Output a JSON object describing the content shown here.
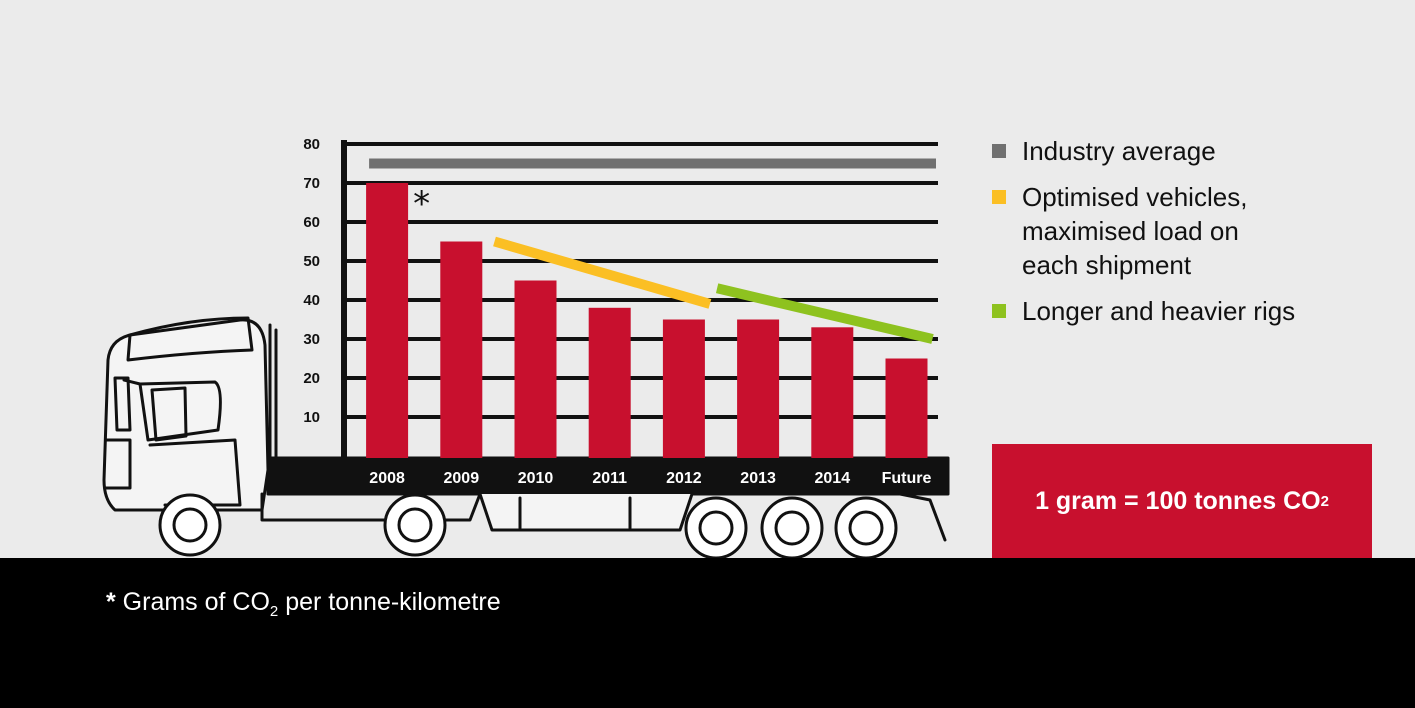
{
  "chart_data": {
    "type": "bar",
    "categories": [
      "2008",
      "2009",
      "2010",
      "2011",
      "2012",
      "2013",
      "2014",
      "Future"
    ],
    "values": [
      70,
      55,
      45,
      38,
      35,
      35,
      33,
      25
    ],
    "yticks": [
      10,
      20,
      30,
      40,
      50,
      60,
      70,
      80
    ],
    "ylim": [
      0,
      80
    ],
    "bar_color": "#c8102e",
    "annotation": "*",
    "reference_lines": [
      {
        "name": "Industry average",
        "color": "#707070",
        "from_category": "2008",
        "to_category": "Future",
        "from_value": 75,
        "to_value": 75
      },
      {
        "name": "Optimised vehicles, maximised load on each shipment",
        "color": "#fbbf24",
        "from_category": "2010",
        "to_category": "2012",
        "from_value": 55,
        "to_value": 39
      },
      {
        "name": "Longer and heavier rigs",
        "color": "#8ec21f",
        "from_category": "2013",
        "to_category": "Future",
        "from_value": 43,
        "to_value": 30
      }
    ]
  },
  "legend": [
    {
      "label": "Industry average",
      "color": "#707070"
    },
    {
      "label": "Optimised vehicles,\nmaximised load on\neach shipment",
      "color": "#fbbf24"
    },
    {
      "label": "Longer and heavier rigs",
      "color": "#8ec21f"
    }
  ],
  "callout": {
    "text": "1 gram = 100 tonnes CO",
    "subscript": "2"
  },
  "footnote": {
    "star": "*",
    "text": " Grams of CO",
    "subscript": "2",
    "suffix": " per tonne-kilometre"
  }
}
